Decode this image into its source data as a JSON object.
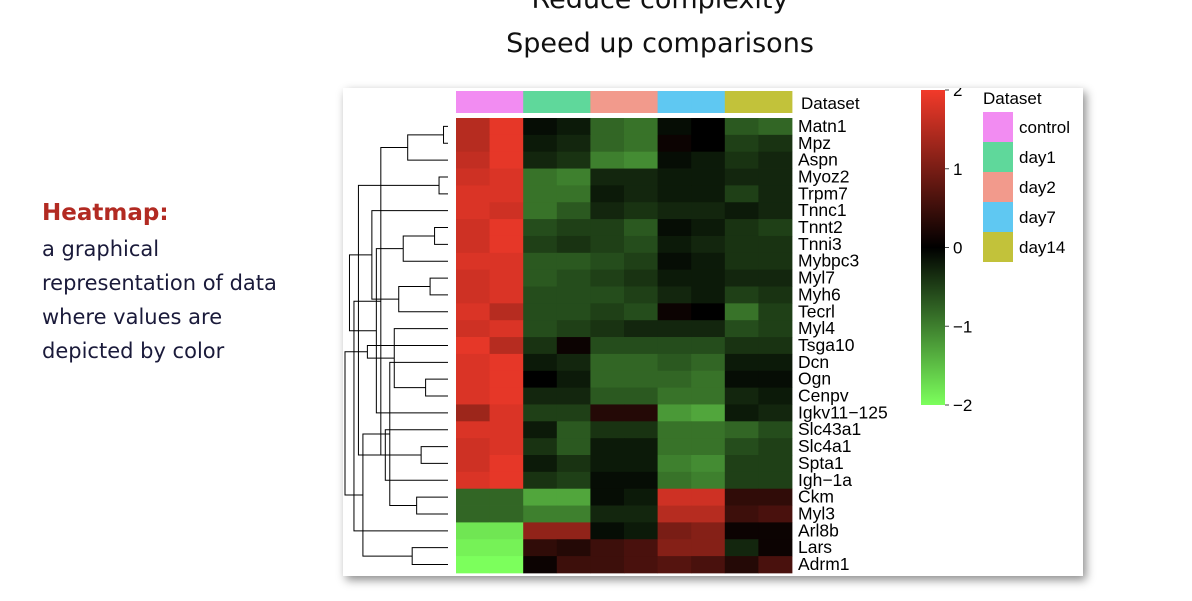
{
  "slide": {
    "title_lines": [
      "Reduce complexity",
      "Speed up comparisons"
    ],
    "side_heading": "Heatmap:",
    "side_text_lines": [
      "a graphical",
      "representation of data",
      "where values are",
      "depicted by color"
    ]
  },
  "chart_data": {
    "type": "heatmap",
    "annotation_label": "Dataset",
    "groups": [
      {
        "name": "control",
        "color": "#f28cf2"
      },
      {
        "name": "day1",
        "color": "#5fd89b"
      },
      {
        "name": "day2",
        "color": "#f29a8c"
      },
      {
        "name": "day7",
        "color": "#5fc8f2"
      },
      {
        "name": "day14",
        "color": "#c2c23a"
      }
    ],
    "column_groups": [
      "control",
      "control",
      "day1",
      "day1",
      "day2",
      "day2",
      "day7",
      "day7",
      "day14",
      "day14"
    ],
    "rows": [
      "Matn1",
      "Mpz",
      "Aspn",
      "Myoz2",
      "Trpm7",
      "Tnnc1",
      "Tnnt2",
      "Tnni3",
      "Mybpc3",
      "Myl7",
      "Myh6",
      "Tecrl",
      "Myl4",
      "Tsga10",
      "Dcn",
      "Ogn",
      "Cenpv",
      "Igkv11−125",
      "Slc43a1",
      "Slc4a1",
      "Spta1",
      "Igh−1a",
      "Ckm",
      "Myl3",
      "Arl8b",
      "Lars",
      "Adrm1"
    ],
    "values": [
      [
        1.5,
        1.9,
        -0.1,
        -0.2,
        -0.8,
        -0.9,
        -0.1,
        0.0,
        -0.7,
        -0.8
      ],
      [
        1.5,
        1.9,
        -0.2,
        -0.3,
        -0.8,
        -0.9,
        0.1,
        0.0,
        -0.5,
        -0.4
      ],
      [
        1.6,
        1.9,
        -0.3,
        -0.4,
        -1.0,
        -1.1,
        -0.1,
        -0.2,
        -0.4,
        -0.3
      ],
      [
        1.7,
        1.8,
        -0.9,
        -1.0,
        -0.3,
        -0.3,
        -0.2,
        -0.2,
        -0.3,
        -0.3
      ],
      [
        1.8,
        1.8,
        -0.9,
        -0.9,
        -0.2,
        -0.3,
        -0.2,
        -0.2,
        -0.5,
        -0.3
      ],
      [
        1.8,
        1.7,
        -0.9,
        -0.7,
        -0.3,
        -0.4,
        -0.3,
        -0.3,
        -0.2,
        -0.3
      ],
      [
        1.7,
        1.9,
        -0.6,
        -0.5,
        -0.5,
        -0.7,
        -0.1,
        -0.2,
        -0.4,
        -0.5
      ],
      [
        1.7,
        1.9,
        -0.5,
        -0.4,
        -0.5,
        -0.6,
        -0.2,
        -0.3,
        -0.4,
        -0.4
      ],
      [
        1.8,
        1.8,
        -0.7,
        -0.7,
        -0.6,
        -0.5,
        -0.1,
        -0.2,
        -0.4,
        -0.4
      ],
      [
        1.7,
        1.8,
        -0.7,
        -0.6,
        -0.5,
        -0.4,
        -0.2,
        -0.2,
        -0.3,
        -0.3
      ],
      [
        1.7,
        1.8,
        -0.6,
        -0.6,
        -0.6,
        -0.5,
        -0.3,
        -0.2,
        -0.5,
        -0.4
      ],
      [
        1.8,
        1.5,
        -0.6,
        -0.6,
        -0.5,
        -0.6,
        0.1,
        0.0,
        -0.9,
        -0.5
      ],
      [
        1.7,
        1.8,
        -0.6,
        -0.5,
        -0.4,
        -0.3,
        -0.3,
        -0.3,
        -0.6,
        -0.5
      ],
      [
        1.9,
        1.5,
        -0.4,
        0.1,
        -0.6,
        -0.6,
        -0.6,
        -0.6,
        -0.4,
        -0.4
      ],
      [
        1.8,
        1.9,
        -0.2,
        -0.3,
        -0.8,
        -0.8,
        -0.7,
        -0.8,
        -0.2,
        -0.2
      ],
      [
        1.8,
        1.9,
        0.0,
        -0.2,
        -0.8,
        -0.8,
        -0.8,
        -0.9,
        -0.1,
        -0.1
      ],
      [
        1.8,
        1.9,
        -0.3,
        -0.3,
        -0.7,
        -0.7,
        -0.9,
        -0.9,
        -0.3,
        -0.2
      ],
      [
        1.3,
        1.8,
        -0.5,
        -0.5,
        0.3,
        0.3,
        -1.2,
        -1.3,
        -0.2,
        -0.3
      ],
      [
        1.8,
        1.8,
        -0.2,
        -0.7,
        -0.4,
        -0.4,
        -0.9,
        -0.9,
        -0.8,
        -0.6
      ],
      [
        1.7,
        1.8,
        -0.4,
        -0.7,
        -0.2,
        -0.2,
        -0.9,
        -0.9,
        -0.6,
        -0.5
      ],
      [
        1.7,
        1.9,
        -0.2,
        -0.4,
        -0.2,
        -0.2,
        -1.0,
        -1.1,
        -0.5,
        -0.5
      ],
      [
        1.8,
        1.9,
        -0.4,
        -0.5,
        -0.1,
        -0.1,
        -0.9,
        -1.0,
        -0.5,
        -0.5
      ],
      [
        -0.8,
        -0.8,
        -1.3,
        -1.3,
        -0.1,
        -0.2,
        1.7,
        1.7,
        0.4,
        0.4
      ],
      [
        -0.8,
        -0.8,
        -1.0,
        -1.0,
        -0.3,
        -0.3,
        1.5,
        1.5,
        0.5,
        0.6
      ],
      [
        -1.8,
        -1.8,
        1.2,
        1.2,
        -0.1,
        -0.2,
        1.0,
        1.1,
        0.1,
        0.1
      ],
      [
        -1.9,
        -1.9,
        0.4,
        0.3,
        0.5,
        0.6,
        1.1,
        1.1,
        -0.3,
        0.1
      ],
      [
        -2.0,
        -2.0,
        0.1,
        0.5,
        0.5,
        0.6,
        0.7,
        0.6,
        0.3,
        0.6
      ]
    ],
    "color_scale": {
      "min": -2,
      "mid": 0,
      "max": 2,
      "low_color": "#7cff5c",
      "mid_color": "#000000",
      "high_color": "#f23a2a"
    },
    "colorbar_ticks": [
      2,
      1,
      0,
      -1,
      -2
    ],
    "colorbar_tick_labels": [
      "2",
      "1",
      "0",
      "−1",
      "−2"
    ],
    "legend_title": "Dataset",
    "row_dendrogram": [
      [
        0,
        1
      ],
      [
        3,
        4
      ],
      [
        6,
        7
      ],
      [
        9,
        10
      ],
      [
        15,
        16
      ],
      [
        19,
        20
      ],
      [
        22,
        23
      ],
      [
        25,
        26
      ],
      [
        27,
        2
      ],
      [
        29,
        8
      ],
      [
        30,
        11
      ],
      [
        31,
        12
      ],
      [
        33,
        14
      ],
      [
        18,
        21
      ],
      [
        32,
        35
      ],
      [
        36,
        17
      ],
      [
        37,
        5
      ],
      [
        38,
        13
      ],
      [
        39,
        34
      ],
      [
        40,
        28
      ],
      [
        24,
        41
      ],
      [
        43,
        42
      ],
      [
        44,
        45
      ]
    ]
  }
}
